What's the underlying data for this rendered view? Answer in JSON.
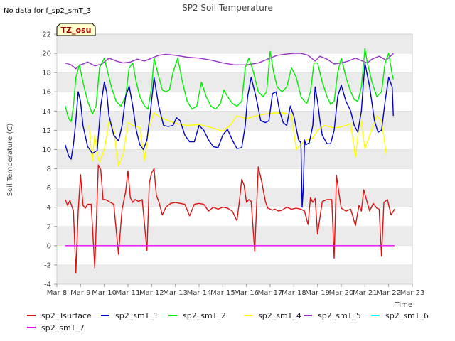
{
  "chart_data": {
    "type": "line",
    "title": "SP2 Soil Temperature",
    "no_data_note": "No data for f_sp2_smT_3",
    "badge": "TZ_osu",
    "ylabel": "Soil Temperature (C)",
    "xlabel": "Time",
    "ylim": [
      -4,
      22
    ],
    "xlim": [
      8,
      23
    ],
    "grid": "horizontal alternating bands",
    "legend_position": "bottom",
    "yticks": [
      {
        "value": -4,
        "label": "-4"
      },
      {
        "value": -2,
        "label": "-2"
      },
      {
        "value": 0,
        "label": "0"
      },
      {
        "value": 2,
        "label": "2"
      },
      {
        "value": 4,
        "label": "4"
      },
      {
        "value": 6,
        "label": "6"
      },
      {
        "value": 8,
        "label": "8"
      },
      {
        "value": 10,
        "label": "10"
      },
      {
        "value": 12,
        "label": "12"
      },
      {
        "value": 14,
        "label": "14"
      },
      {
        "value": 16,
        "label": "16"
      },
      {
        "value": 18,
        "label": "18"
      },
      {
        "value": 20,
        "label": "20"
      },
      {
        "value": 22,
        "label": "22"
      }
    ],
    "xticks": [
      {
        "value": 8,
        "label": "Mar 8"
      },
      {
        "value": 9,
        "label": "Mar 9"
      },
      {
        "value": 10,
        "label": "Mar 10"
      },
      {
        "value": 11,
        "label": "Mar 11"
      },
      {
        "value": 12,
        "label": "Mar 12"
      },
      {
        "value": 13,
        "label": "Mar 13"
      },
      {
        "value": 14,
        "label": "Mar 14"
      },
      {
        "value": 15,
        "label": "Mar 15"
      },
      {
        "value": 16,
        "label": "Mar 16"
      },
      {
        "value": 17,
        "label": "Mar 17"
      },
      {
        "value": 18,
        "label": "Mar 18"
      },
      {
        "value": 19,
        "label": "Mar 19"
      },
      {
        "value": 20,
        "label": "Mar 20"
      },
      {
        "value": 21,
        "label": "Mar 21"
      },
      {
        "value": 22,
        "label": "Mar 22"
      },
      {
        "value": 23,
        "label": "Mar 23"
      }
    ],
    "series": [
      {
        "name": "sp2_Tsurface",
        "color": "#dd1111",
        "x": [
          8.35,
          8.45,
          8.55,
          8.7,
          8.8,
          8.9,
          9.0,
          9.1,
          9.2,
          9.3,
          9.45,
          9.6,
          9.75,
          9.85,
          9.95,
          10.05,
          10.2,
          10.4,
          10.6,
          10.75,
          10.9,
          11.0,
          11.1,
          11.2,
          11.3,
          11.45,
          11.6,
          11.8,
          11.9,
          12.0,
          12.1,
          12.2,
          12.3,
          12.45,
          12.6,
          12.8,
          13.0,
          13.2,
          13.4,
          13.6,
          13.8,
          14.0,
          14.2,
          14.4,
          14.6,
          14.8,
          15.0,
          15.2,
          15.4,
          15.6,
          15.7,
          15.8,
          15.9,
          16.0,
          16.1,
          16.2,
          16.35,
          16.5,
          16.65,
          16.8,
          16.9,
          17.0,
          17.1,
          17.2,
          17.35,
          17.5,
          17.7,
          17.9,
          18.1,
          18.3,
          18.45,
          18.6,
          18.7,
          18.8,
          18.9,
          19.0,
          19.2,
          19.4,
          19.6,
          19.7,
          19.8,
          19.9,
          20.0,
          20.2,
          20.4,
          20.6,
          20.75,
          20.85,
          20.95,
          21.05,
          21.2,
          21.35,
          21.5,
          21.6,
          21.7,
          21.8,
          21.95,
          22.1,
          22.25
        ],
        "values": [
          4.8,
          4.2,
          4.7,
          3.6,
          -2.8,
          3.6,
          7.4,
          4.2,
          3.9,
          4.3,
          4.3,
          -2.3,
          8.4,
          7.9,
          4.8,
          4.8,
          4.6,
          4.3,
          -0.9,
          3.8,
          5.6,
          7.8,
          5.0,
          4.5,
          4.8,
          4.6,
          4.8,
          -0.5,
          6.5,
          7.6,
          8.0,
          5.2,
          4.6,
          3.2,
          4.0,
          4.4,
          4.5,
          4.4,
          4.3,
          3.1,
          4.3,
          4.4,
          4.3,
          3.6,
          4.0,
          3.8,
          4.0,
          3.9,
          3.6,
          2.6,
          4.6,
          6.9,
          6.3,
          4.5,
          4.8,
          4.6,
          -0.6,
          8.2,
          6.6,
          4.6,
          3.9,
          3.8,
          3.7,
          3.8,
          3.6,
          3.7,
          4.0,
          3.8,
          3.9,
          3.8,
          3.6,
          2.2,
          5.0,
          4.5,
          4.9,
          1.2,
          4.6,
          4.8,
          4.8,
          -1.3,
          7.3,
          5.5,
          3.9,
          3.6,
          3.8,
          2.1,
          4.2,
          3.6,
          5.8,
          4.9,
          3.6,
          4.4,
          3.9,
          3.8,
          -1.1,
          4.5,
          4.8,
          3.2,
          3.8
        ]
      },
      {
        "name": "sp2_smT_1",
        "color": "#0000cc",
        "x": [
          8.35,
          8.5,
          8.6,
          8.7,
          8.8,
          8.9,
          9.0,
          9.1,
          9.3,
          9.5,
          9.7,
          9.85,
          10.0,
          10.1,
          10.2,
          10.4,
          10.6,
          10.75,
          10.9,
          11.05,
          11.2,
          11.35,
          11.5,
          11.65,
          11.8,
          11.95,
          12.1,
          12.3,
          12.5,
          12.7,
          12.9,
          13.05,
          13.2,
          13.4,
          13.6,
          13.8,
          14.0,
          14.2,
          14.4,
          14.6,
          14.8,
          15.0,
          15.2,
          15.4,
          15.6,
          15.8,
          15.95,
          16.05,
          16.2,
          16.4,
          16.6,
          16.8,
          16.95,
          17.1,
          17.25,
          17.4,
          17.55,
          17.7,
          17.85,
          18.0,
          18.2,
          18.3,
          18.35,
          18.4,
          18.45,
          18.5,
          18.65,
          18.8,
          18.9,
          19.0,
          19.1,
          19.2,
          19.4,
          19.55,
          19.7,
          19.85,
          20.0,
          20.2,
          20.4,
          20.55,
          20.7,
          20.85,
          21.0,
          21.2,
          21.4,
          21.55,
          21.7,
          21.85,
          22.0,
          22.15,
          22.2
        ],
        "values": [
          10.5,
          9.3,
          9.0,
          10.5,
          13.0,
          16.0,
          15.0,
          12.5,
          10.3,
          9.6,
          9.9,
          14.5,
          17.0,
          16.0,
          13.5,
          11.5,
          10.9,
          12.5,
          15.5,
          16.6,
          14.5,
          12.0,
          10.5,
          10.0,
          11.0,
          14.0,
          17.5,
          14.5,
          12.5,
          12.4,
          12.5,
          13.3,
          13.0,
          11.5,
          10.8,
          10.8,
          12.5,
          12.0,
          11.0,
          10.3,
          10.2,
          11.5,
          12.1,
          11.0,
          10.1,
          10.2,
          12.5,
          15.5,
          17.5,
          15.5,
          13.0,
          12.8,
          13.0,
          15.8,
          16.0,
          14.0,
          12.8,
          12.5,
          14.5,
          13.5,
          11.0,
          10.7,
          4.0,
          6.0,
          11.0,
          10.5,
          10.7,
          12.5,
          16.5,
          15.0,
          13.0,
          11.5,
          10.6,
          10.6,
          12.0,
          15.5,
          16.7,
          15.0,
          14.0,
          12.5,
          11.8,
          14.0,
          19.0,
          16.5,
          13.0,
          11.8,
          12.0,
          15.0,
          17.5,
          16.5,
          13.5
        ]
      },
      {
        "name": "sp2_smT_2",
        "color": "#00ee00",
        "x": [
          8.35,
          8.5,
          8.6,
          8.7,
          8.8,
          8.95,
          9.1,
          9.3,
          9.5,
          9.65,
          9.8,
          10.0,
          10.1,
          10.3,
          10.5,
          10.7,
          10.9,
          11.05,
          11.2,
          11.35,
          11.5,
          11.7,
          11.85,
          12.0,
          12.1,
          12.25,
          12.45,
          12.6,
          12.75,
          12.9,
          13.1,
          13.3,
          13.5,
          13.7,
          13.9,
          14.1,
          14.3,
          14.5,
          14.7,
          14.9,
          15.05,
          15.2,
          15.4,
          15.6,
          15.8,
          15.95,
          16.1,
          16.3,
          16.5,
          16.7,
          16.85,
          17.0,
          17.15,
          17.3,
          17.5,
          17.7,
          17.9,
          18.1,
          18.3,
          18.45,
          18.55,
          18.7,
          18.85,
          19.0,
          19.2,
          19.4,
          19.55,
          19.7,
          19.85,
          20.0,
          20.2,
          20.4,
          20.55,
          20.7,
          20.85,
          21.0,
          21.1,
          21.3,
          21.5,
          21.7,
          21.85,
          22.0,
          22.15,
          22.2
        ],
        "values": [
          14.5,
          13.2,
          12.9,
          14.5,
          17.5,
          18.8,
          17.0,
          15.0,
          13.7,
          14.5,
          18.5,
          19.5,
          18.5,
          16.5,
          15.0,
          14.5,
          15.5,
          18.5,
          19.0,
          17.0,
          15.5,
          14.5,
          14.2,
          16.5,
          19.5,
          18.0,
          16.2,
          16.0,
          16.2,
          18.0,
          19.5,
          17.0,
          15.0,
          14.2,
          14.5,
          17.0,
          15.5,
          14.5,
          14.2,
          14.8,
          16.2,
          15.5,
          14.8,
          14.5,
          15.0,
          18.5,
          19.5,
          18.0,
          16.0,
          15.5,
          16.0,
          20.2,
          18.0,
          16.5,
          16.0,
          16.5,
          18.5,
          17.5,
          15.5,
          15.0,
          14.8,
          16.0,
          19.0,
          19.0,
          17.0,
          15.5,
          14.7,
          15.0,
          18.0,
          19.5,
          17.5,
          16.0,
          15.2,
          15.0,
          16.5,
          20.5,
          19.0,
          17.0,
          15.5,
          16.0,
          19.0,
          20.0,
          17.8,
          17.3
        ]
      },
      {
        "name": "sp2_smT_4",
        "color": "#ffff00",
        "x": [
          9.35,
          9.5,
          9.6,
          9.7,
          9.8,
          10.0,
          10.2,
          10.4,
          10.6,
          10.8,
          11.0,
          11.2,
          11.5,
          11.7,
          11.9,
          12.1,
          12.4,
          12.7,
          13.0,
          13.5,
          14.0,
          14.5,
          15.0,
          15.3,
          15.6,
          16.0,
          16.4,
          16.8,
          17.2,
          17.6,
          17.9,
          18.1,
          18.3,
          18.5,
          18.8,
          19.0,
          19.3,
          19.6,
          19.9,
          20.2,
          20.4,
          20.6,
          20.8,
          21.0,
          21.2,
          21.5,
          21.7,
          21.9
        ],
        "values": [
          12.5,
          8.8,
          11.5,
          9.5,
          8.7,
          10.0,
          12.9,
          12.0,
          8.3,
          9.5,
          12.8,
          12.5,
          12.3,
          8.8,
          12.5,
          13.8,
          13.3,
          13.0,
          12.7,
          12.5,
          12.6,
          12.3,
          11.9,
          12.5,
          13.5,
          13.2,
          13.5,
          13.7,
          13.8,
          13.8,
          13.6,
          10.0,
          10.5,
          11.0,
          11.2,
          12.0,
          12.5,
          12.3,
          12.3,
          12.5,
          12.7,
          9.2,
          13.6,
          10.1,
          11.5,
          13.5,
          13.0,
          9.5
        ]
      },
      {
        "name": "sp2_smT_5",
        "color": "#9933cc",
        "x": [
          8.35,
          8.6,
          8.8,
          9.0,
          9.3,
          9.6,
          9.9,
          10.2,
          10.5,
          10.8,
          11.1,
          11.4,
          11.7,
          12.0,
          12.3,
          12.6,
          13.0,
          13.5,
          14.0,
          14.5,
          15.0,
          15.5,
          16.0,
          16.5,
          17.0,
          17.3,
          17.6,
          18.0,
          18.3,
          18.6,
          18.9,
          19.1,
          19.4,
          19.7,
          20.0,
          20.3,
          20.6,
          20.9,
          21.1,
          21.3,
          21.6,
          21.9,
          22.2
        ],
        "values": [
          19.0,
          18.8,
          18.4,
          18.8,
          19.1,
          18.7,
          18.9,
          19.5,
          19.2,
          19.0,
          19.1,
          19.4,
          19.2,
          19.5,
          19.8,
          19.9,
          19.8,
          19.6,
          19.5,
          19.3,
          19.0,
          18.8,
          18.8,
          19.0,
          19.5,
          19.8,
          19.9,
          20.0,
          20.0,
          19.8,
          19.2,
          19.7,
          19.4,
          18.9,
          19.0,
          19.2,
          19.5,
          19.2,
          19.0,
          19.4,
          19.7,
          19.3,
          20.0
        ]
      },
      {
        "name": "sp2_smT_6",
        "color": "#00ffff",
        "x": [
          8.35,
          22.25
        ],
        "values": [
          0.0,
          0.0
        ]
      },
      {
        "name": "sp2_smT_7",
        "color": "#ff00ff",
        "x": [
          8.35,
          22.25
        ],
        "values": [
          0.0,
          0.0
        ]
      }
    ]
  }
}
